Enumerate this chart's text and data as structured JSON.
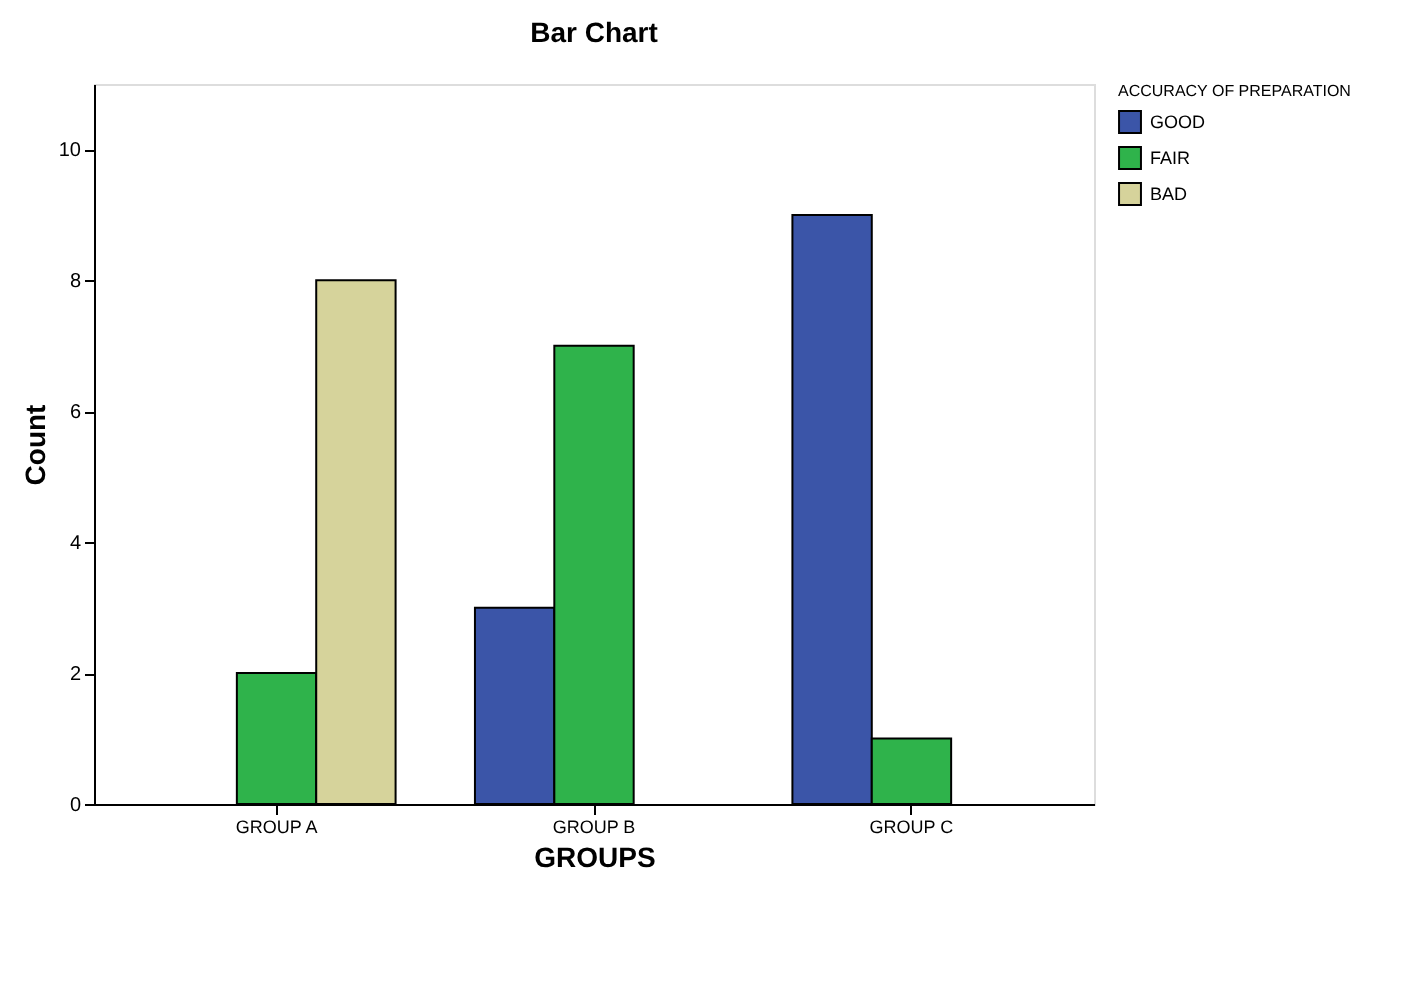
{
  "chart_data": {
    "type": "bar",
    "title": "Bar Chart",
    "xlabel": "GROUPS",
    "ylabel": "Count",
    "legend_title": "ACCURACY OF PREPARATION",
    "categories": [
      "GROUP A",
      "GROUP B",
      "GROUP C"
    ],
    "series": [
      {
        "name": "GOOD",
        "color": "#3b55a8",
        "values": [
          null,
          3,
          9
        ]
      },
      {
        "name": "FAIR",
        "color": "#2fb34b",
        "values": [
          2,
          7,
          1
        ]
      },
      {
        "name": "BAD",
        "color": "#d6d39b",
        "values": [
          8,
          null,
          null
        ]
      }
    ],
    "ylim": [
      0,
      11
    ],
    "yticks": [
      0,
      2,
      4,
      6,
      8,
      10
    ],
    "grid": false,
    "legend": "top right"
  }
}
